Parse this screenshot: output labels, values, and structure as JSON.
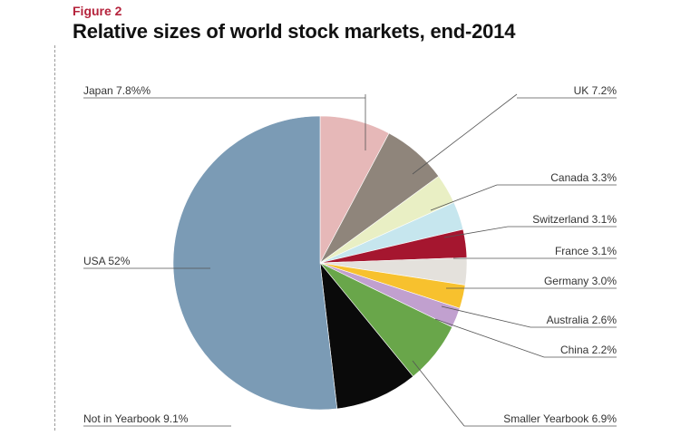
{
  "figure_label": "Figure 2",
  "title": "Relative sizes of world stock markets, end-2014",
  "chart_data": {
    "type": "pie",
    "title": "Relative sizes of world stock markets, end-2014",
    "start": "12 o'clock",
    "direction": "clockwise",
    "slices": [
      {
        "label": "Japan 7.8%%",
        "name": "Japan",
        "value": 7.8,
        "color": "#e6b8b8"
      },
      {
        "label": "UK 7.2%",
        "name": "UK",
        "value": 7.2,
        "color": "#8f857b"
      },
      {
        "label": "Canada 3.3%",
        "name": "Canada",
        "value": 3.3,
        "color": "#e9efc4"
      },
      {
        "label": "Switzerland 3.1%",
        "name": "Switzerland",
        "value": 3.1,
        "color": "#c6e6ee"
      },
      {
        "label": "France 3.1%",
        "name": "France",
        "value": 3.1,
        "color": "#a5162f"
      },
      {
        "label": "Germany 3.0%",
        "name": "Germany",
        "value": 3.0,
        "color": "#e4e1dc"
      },
      {
        "label": "Australia 2.6%",
        "name": "Australia",
        "value": 2.6,
        "color": "#f7c12e"
      },
      {
        "label": "China 2.2%",
        "name": "China",
        "value": 2.2,
        "color": "#c1a0cf"
      },
      {
        "label": "Smaller Yearbook 6.9%",
        "name": "Smaller Yearbook",
        "value": 6.9,
        "color": "#69a64a"
      },
      {
        "label": "Not in Yearbook 9.1%",
        "name": "Not in Yearbook",
        "value": 9.1,
        "color": "#0a0a0a"
      },
      {
        "label": "USA 52%",
        "name": "USA",
        "value": 52,
        "color": "#7b9bb5"
      }
    ]
  }
}
